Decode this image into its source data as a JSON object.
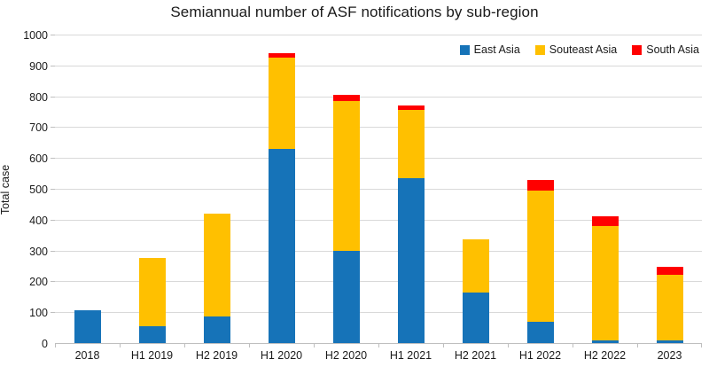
{
  "title": "Semiannual number of ASF notifications by sub-region",
  "chart_data": {
    "type": "bar",
    "stacked": true,
    "title": "Semiannual number of ASF notifications by sub-region",
    "xlabel": "",
    "ylabel": "Total case",
    "ylim": [
      0,
      1000
    ],
    "ytick_step": 100,
    "grid": true,
    "legend_position": "top-right",
    "categories": [
      "2018",
      "H1 2019",
      "H2 2019",
      "H1 2020",
      "H2 2020",
      "H1 2021",
      "H2 2021",
      "H1 2022",
      "H2 2022",
      "2023"
    ],
    "series": [
      {
        "name": "East Asia",
        "color": "#1673b8",
        "values": [
          105,
          55,
          85,
          630,
          300,
          535,
          165,
          70,
          8,
          10
        ]
      },
      {
        "name": "Souteast Asia",
        "color": "#ffc000",
        "values": [
          0,
          220,
          335,
          295,
          485,
          220,
          170,
          425,
          370,
          212
        ]
      },
      {
        "name": "South Asia",
        "color": "#ff0000",
        "values": [
          0,
          0,
          0,
          15,
          20,
          15,
          0,
          35,
          32,
          25
        ]
      }
    ],
    "totals": [
      105,
      275,
      420,
      940,
      805,
      770,
      335,
      530,
      410,
      247
    ]
  },
  "colors": {
    "gridline": "#d9d9d9",
    "axis_line": "#bfbfbf",
    "text": "#1a1a1a",
    "background": "#ffffff"
  }
}
